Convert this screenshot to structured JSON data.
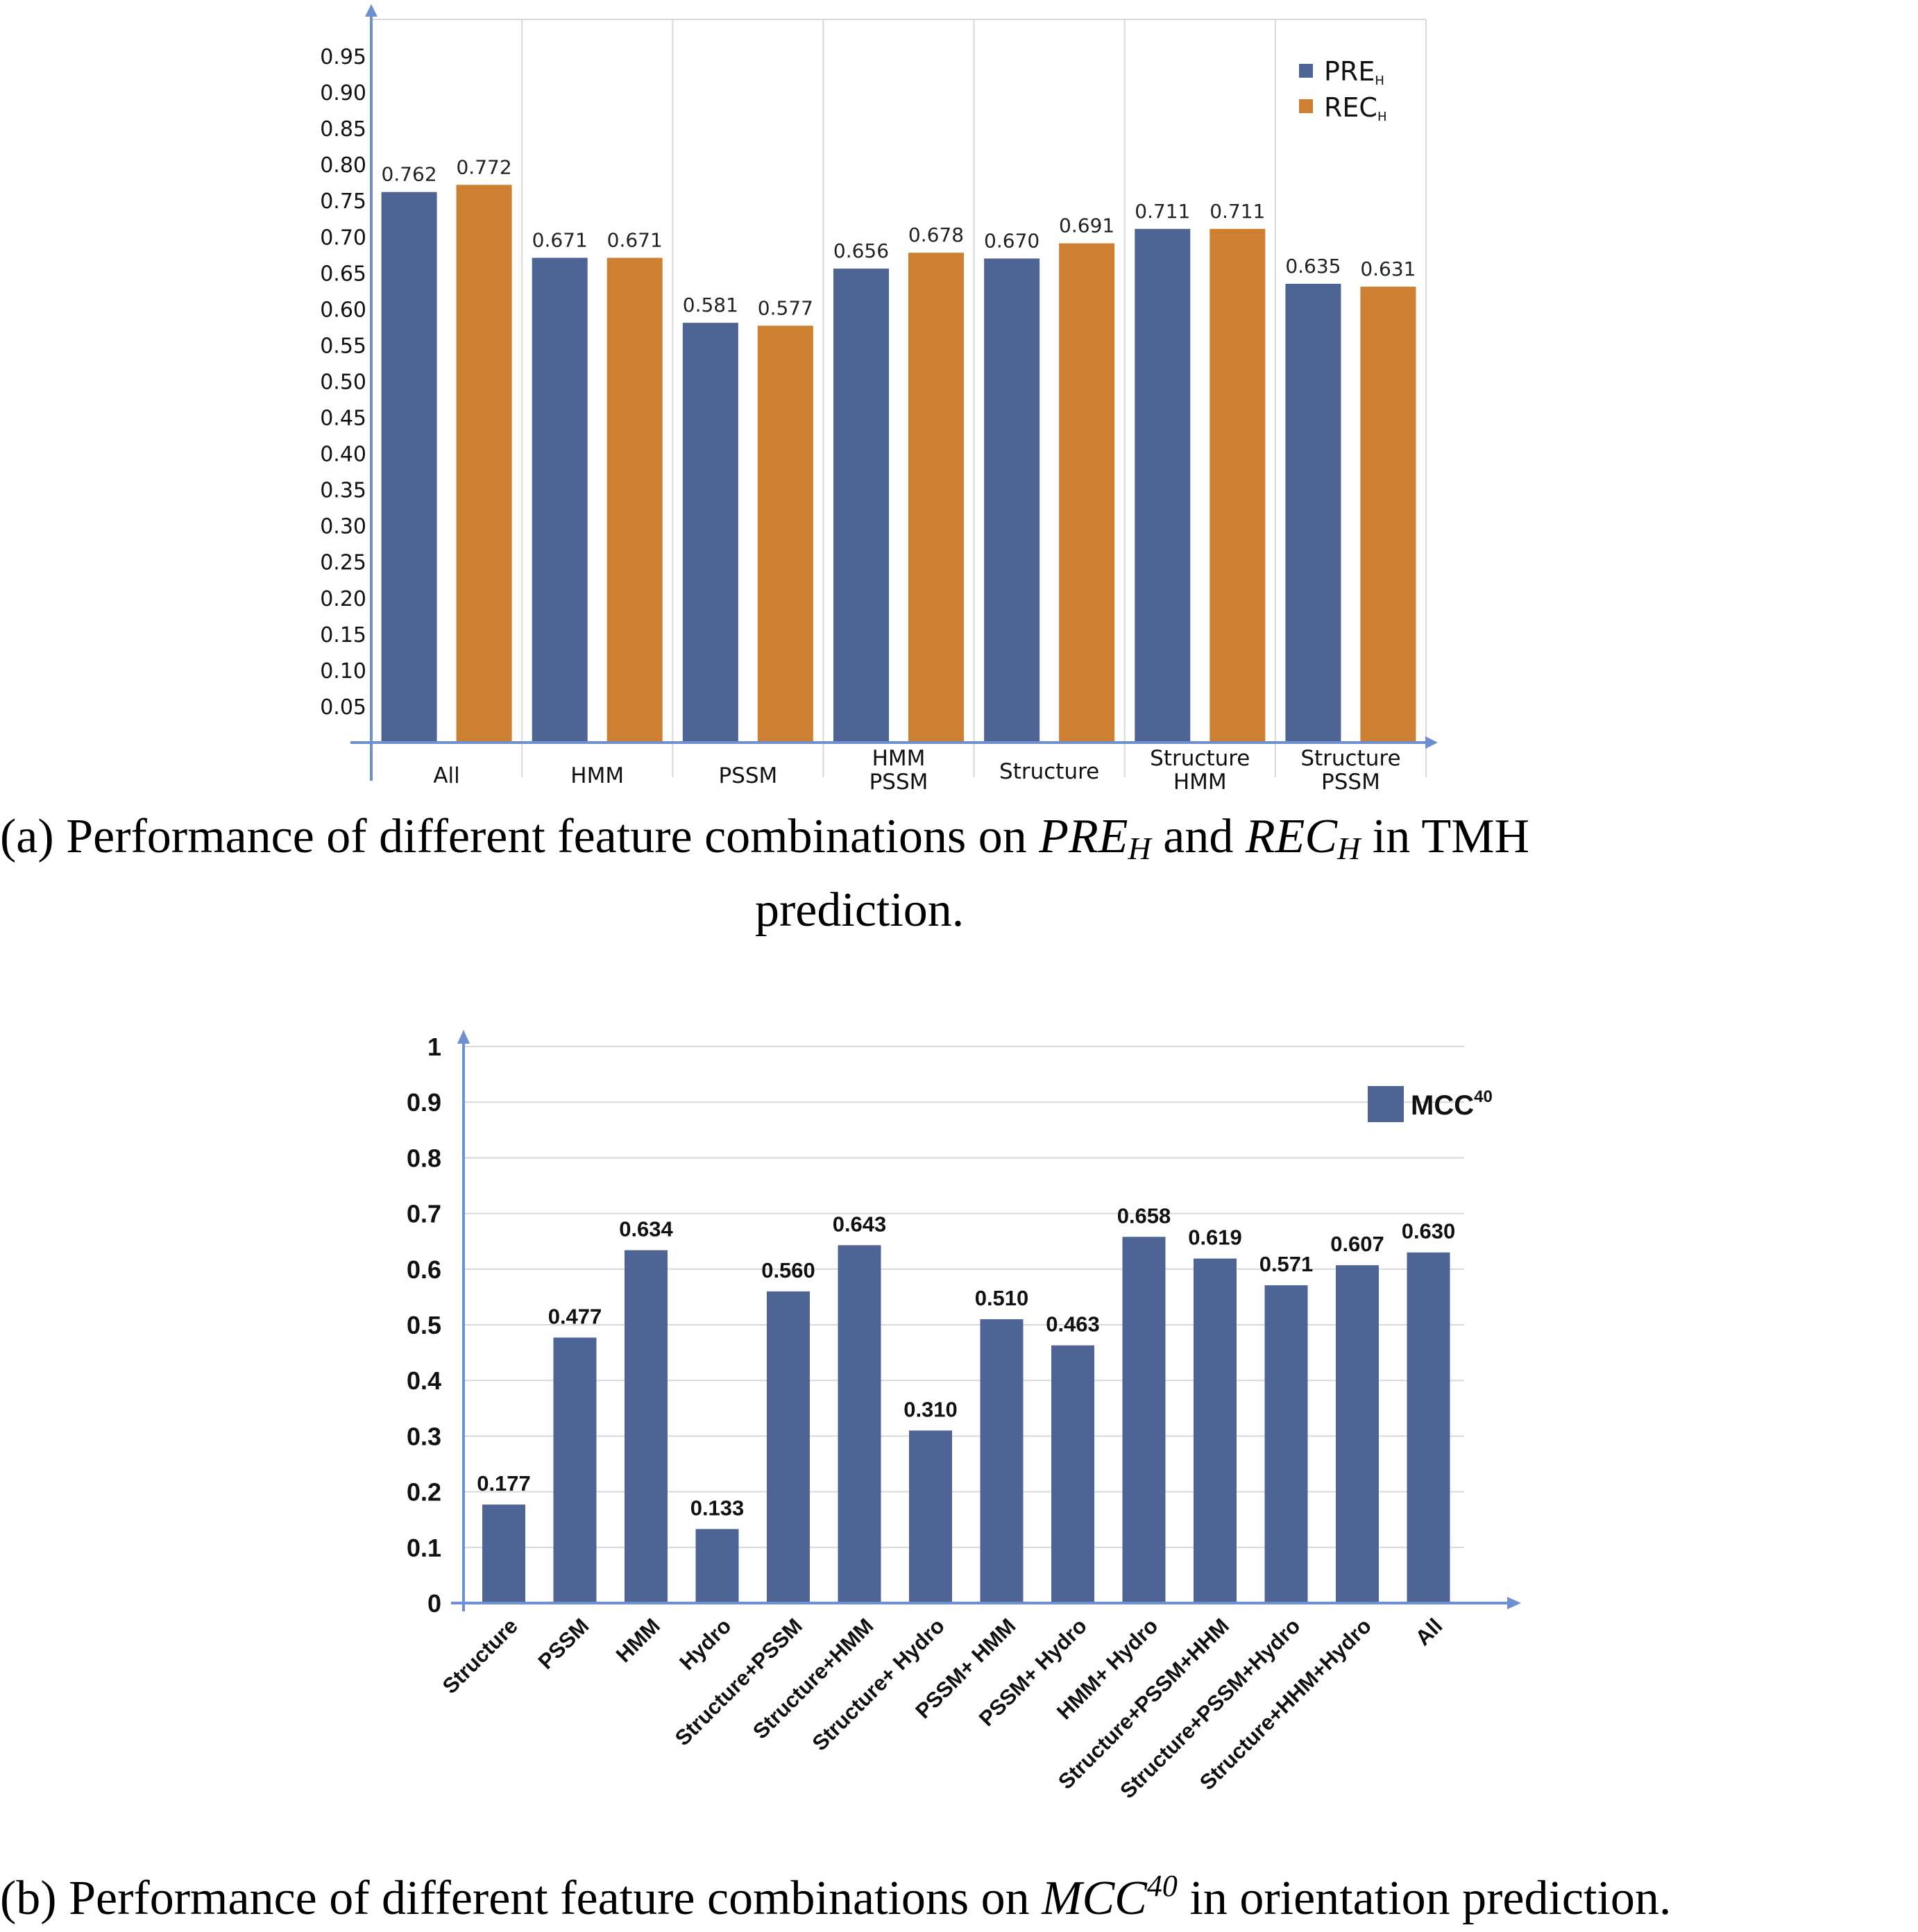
{
  "colors": {
    "pre": "#4e6494",
    "rec": "#cd7f32",
    "mcc": "#4e6494",
    "axis": "#6e8fd0",
    "grid": "#d9d9d9"
  },
  "chart_data": [
    {
      "type": "bar",
      "categories": [
        "All",
        "HMM",
        "PSSM",
        "HMM\nPSSM",
        "Structure",
        "Structure\nHMM",
        "Structure\nPSSM"
      ],
      "series": [
        {
          "name": "PRE",
          "name_sub": "H",
          "values": [
            0.762,
            0.671,
            0.581,
            0.656,
            0.67,
            0.711,
            0.635
          ]
        },
        {
          "name": "REC",
          "name_sub": "H",
          "values": [
            0.772,
            0.671,
            0.577,
            0.678,
            0.691,
            0.711,
            0.631
          ]
        }
      ],
      "value_labels": [
        [
          "0.762",
          "0.671",
          "0.581",
          "0.656",
          "0.670",
          "0.711",
          "0.635"
        ],
        [
          "0.772",
          "0.671",
          "0.577",
          "0.678",
          "0.691",
          "0.711",
          "0.631"
        ]
      ],
      "yticks": [
        "0.05",
        "0.10",
        "0.15",
        "0.20",
        "0.25",
        "0.30",
        "0.35",
        "0.40",
        "0.45",
        "0.50",
        "0.55",
        "0.60",
        "0.65",
        "0.70",
        "0.75",
        "0.80",
        "0.85",
        "0.90",
        "0.95"
      ],
      "ylim": [
        0,
        0.95
      ],
      "grid": "vertical",
      "legend": "top-right",
      "caption": {
        "line1_a": "(a) Performance of different feature combinations on ",
        "line1_pre": "PRE",
        "line1_pre_sub": "H",
        "line1_and": " and ",
        "line1_rec": "REC",
        "line1_rec_sub": "H",
        "line1_end": " in TMH",
        "line2": "prediction."
      }
    },
    {
      "type": "bar",
      "categories": [
        "Structure",
        "PSSM",
        "HMM",
        "Hydro",
        "Structure+PSSM",
        "Structure+HMM",
        "Structure+ Hydro",
        "PSSM+ HMM",
        "PSSM+ Hydro",
        "HMM+ Hydro",
        "Structure+PSSM+HHM",
        "Structure+PSSM+Hydro",
        "Structure+HHM+Hydro",
        "All"
      ],
      "series": [
        {
          "name": "MCC",
          "name_sup": "40",
          "values": [
            0.177,
            0.477,
            0.634,
            0.133,
            0.56,
            0.643,
            0.31,
            0.51,
            0.463,
            0.658,
            0.619,
            0.571,
            0.607,
            0.63
          ]
        }
      ],
      "value_labels": [
        "0.177",
        "0.477",
        "0.634",
        "0.133",
        "0.560",
        "0.643",
        "0.310",
        "0.510",
        "0.463",
        "0.658",
        "0.619",
        "0.571",
        "0.607",
        "0.630"
      ],
      "yticks": [
        "0",
        "0.1",
        "0.2",
        "0.3",
        "0.4",
        "0.5",
        "0.6",
        "0.7",
        "0.8",
        "0.9",
        "1"
      ],
      "ylim": [
        0,
        1
      ],
      "grid": "horizontal",
      "legend": "top-right",
      "caption": {
        "a": "(b) Performance of different feature combinations on ",
        "mcc": "MCC",
        "mcc_sup": "40",
        "end": " in orientation prediction."
      }
    }
  ]
}
